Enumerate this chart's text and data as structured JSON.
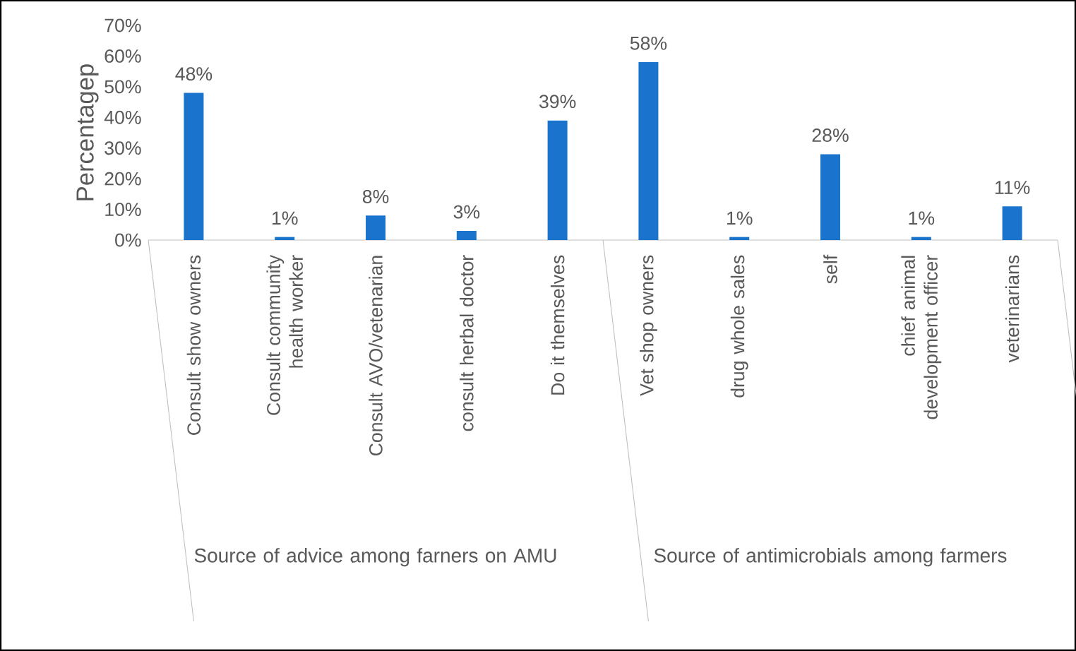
{
  "chart_data": {
    "type": "bar",
    "ylabel": "Percentagep",
    "categories": [
      "Consult show owners",
      "Consult community health worker",
      "Consult AVO/vetenarian",
      "consult herbal doctor",
      "Do it themselves",
      "Vet shop owners",
      "drug whole sales",
      "self",
      "chief animal development officer",
      "veterinarians"
    ],
    "values": [
      48,
      1,
      8,
      3,
      39,
      58,
      1,
      28,
      1,
      11
    ],
    "value_labels": [
      "48%",
      "1%",
      "8%",
      "3%",
      "39%",
      "58%",
      "1%",
      "28%",
      "1%",
      "11%"
    ],
    "color": "#1a73cc",
    "ylim": [
      0,
      70
    ],
    "yticks": [
      {
        "value": 0,
        "label": "0%"
      },
      {
        "value": 10,
        "label": "10%"
      },
      {
        "value": 20,
        "label": "20%"
      },
      {
        "value": 30,
        "label": "30%"
      },
      {
        "value": 40,
        "label": "40%"
      },
      {
        "value": 50,
        "label": "50%"
      },
      {
        "value": 60,
        "label": "60%"
      },
      {
        "value": 70,
        "label": "70%"
      }
    ],
    "annotations": [
      "Source of advice among farners on AMU",
      "Source of antimicrobials among farmers"
    ]
  }
}
